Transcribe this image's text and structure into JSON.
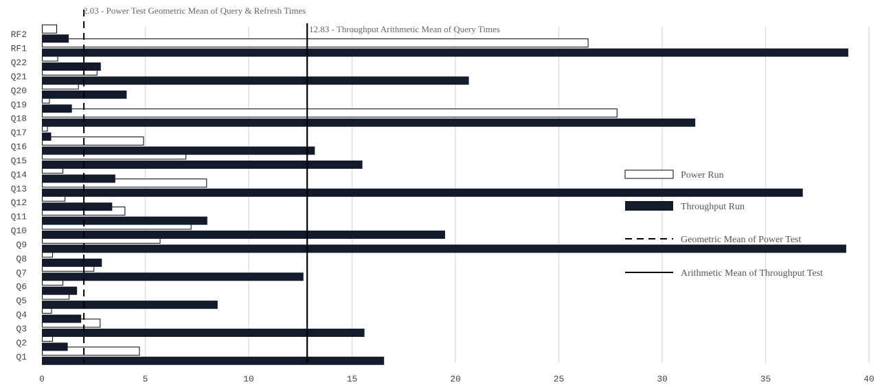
{
  "chart_data": {
    "type": "bar",
    "orientation": "horizontal",
    "categories": [
      "Q1",
      "Q2",
      "Q3",
      "Q4",
      "Q5",
      "Q6",
      "Q7",
      "Q8",
      "Q9",
      "Q10",
      "Q11",
      "Q12",
      "Q13",
      "Q14",
      "Q15",
      "Q16",
      "Q17",
      "Q18",
      "Q19",
      "Q20",
      "Q21",
      "Q22",
      "RF1",
      "RF2"
    ],
    "series": [
      {
        "name": "Power Run",
        "color": "#ffffff",
        "values": [
          4.7,
          0.5,
          2.8,
          0.45,
          1.3,
          1.0,
          2.5,
          0.5,
          5.7,
          7.2,
          4.0,
          1.1,
          7.95,
          1.0,
          6.95,
          4.9,
          0.25,
          27.8,
          0.35,
          1.75,
          2.65,
          0.75,
          26.4,
          0.7
        ]
      },
      {
        "name": "Throughput Run",
        "color": "#131a2b",
        "values": [
          16.55,
          1.25,
          15.6,
          1.9,
          8.5,
          1.7,
          12.65,
          2.9,
          38.9,
          19.5,
          8.0,
          3.4,
          36.8,
          3.55,
          15.5,
          13.2,
          0.45,
          31.6,
          1.45,
          4.1,
          20.65,
          2.85,
          39.0,
          1.3
        ]
      }
    ],
    "reference_lines": [
      {
        "name": "Geometric Mean of Power Test",
        "value": 2.03,
        "style": "dashed",
        "label": "2.03 - Power Test Geometric Mean of Query & Refresh Times"
      },
      {
        "name": "Arithmetic Mean of Throughput Test",
        "value": 12.83,
        "style": "solid",
        "label": "12.83 - Throughput Arithmetic Mean of Query Times"
      }
    ],
    "xlim": [
      0,
      40
    ],
    "xticks": [
      0,
      5,
      10,
      15,
      20,
      25,
      30,
      35,
      40
    ],
    "grid": "vertical",
    "legend_position": "right",
    "title": "",
    "xlabel": "",
    "ylabel": ""
  }
}
